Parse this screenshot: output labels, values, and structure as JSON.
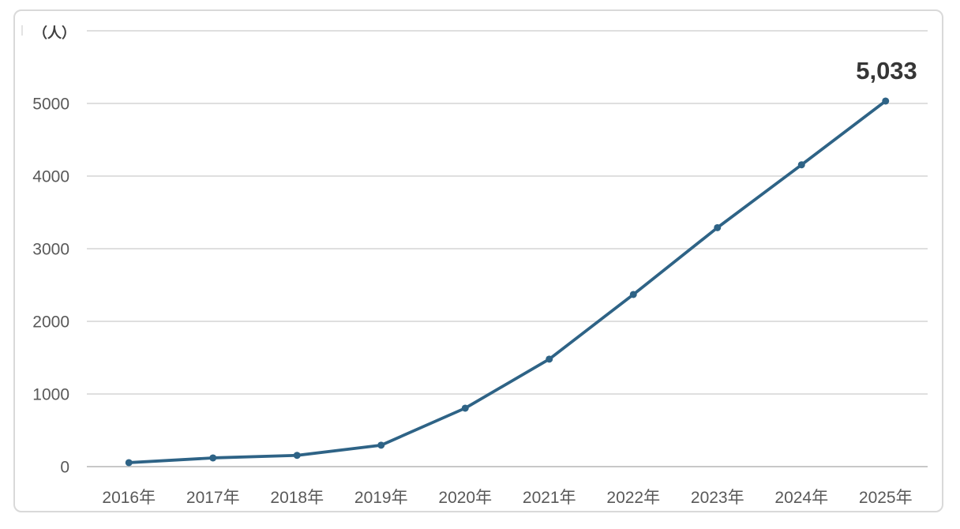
{
  "chart_data": {
    "type": "line",
    "title": "",
    "categories": [
      "2016年",
      "2017年",
      "2018年",
      "2019年",
      "2020年",
      "2021年",
      "2022年",
      "2023年",
      "2024年",
      "2025年"
    ],
    "values": [
      55,
      120,
      155,
      295,
      805,
      1480,
      2370,
      3290,
      4155,
      5033
    ],
    "xlabel": "",
    "ylabel": "（人）",
    "ylim": [
      0,
      6000
    ],
    "ytick_step": 1000,
    "ytick_labels": [
      "0",
      "1000",
      "2000",
      "3000",
      "4000",
      "5000"
    ],
    "grid": true,
    "legend": "none",
    "annotation": {
      "text": "5,033",
      "category": "2025年",
      "value": 5033
    },
    "colors": {
      "line": "#2e6386",
      "marker": "#2e6386",
      "gridline": "#dfdfdf",
      "zero_axis": "#c8c8c8",
      "tick_text": "#595959",
      "unit_text": "#3f3f3f",
      "annotation_text": "#363636",
      "frame_border": "#d9d9d9",
      "background": "#ffffff"
    }
  }
}
